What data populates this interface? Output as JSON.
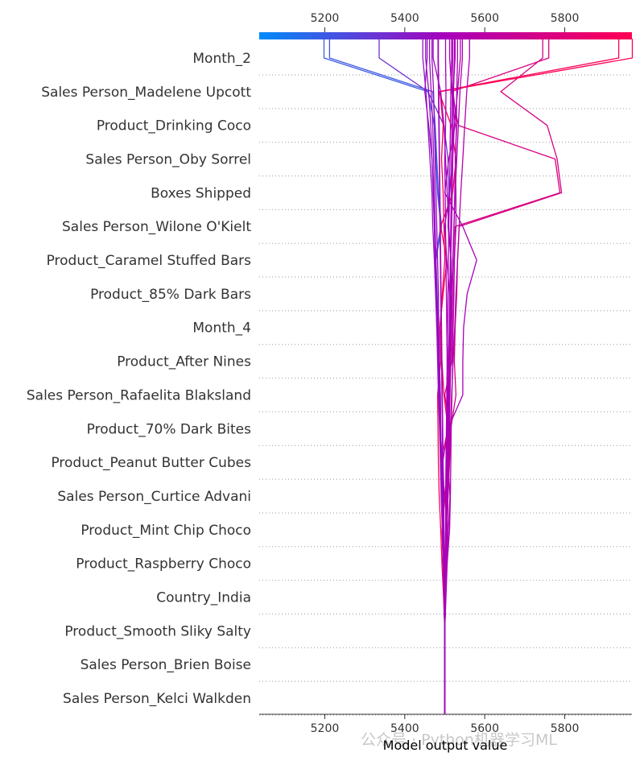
{
  "chart_data": {
    "type": "line",
    "title": "",
    "xlabel": "Model output value",
    "ylabel": "",
    "xlim": [
      5036,
      5968
    ],
    "x_ticks": [
      5200,
      5400,
      5600,
      5800
    ],
    "base_value": 5500,
    "colorbar": {
      "from": "#008bfb",
      "to": "#ff0052"
    },
    "grid": "dotted-horizontal",
    "features": [
      "Month_2",
      "Sales Person_Madelene Upcott",
      "Product_Drinking Coco",
      "Sales Person_Oby Sorrel",
      "Boxes Shipped",
      "Sales Person_Wilone O'Kielt",
      "Product_Caramel Stuffed Bars",
      "Product_85% Dark Bars",
      "Month_4",
      "Product_After Nines",
      "Sales Person_Rafaelita Blaksland",
      "Product_70% Dark Bites",
      "Product_Peanut Butter Cubes",
      "Sales Person_Curtice Advani",
      "Product_Mint Chip Choco",
      "Product_Raspberry Choco",
      "Country_India",
      "Product_Smooth Sliky Salty",
      "Sales Person_Brien Boise",
      "Sales Person_Kelci Walkden"
    ],
    "series": [
      {
        "values": [
          5500,
          5500,
          5500,
          5499,
          5499,
          5498,
          5497,
          5493,
          5488,
          5485,
          5484,
          5482,
          5479,
          5476,
          5490,
          5482,
          5478,
          5474,
          5458,
          5198
        ]
      },
      {
        "values": [
          5500,
          5500,
          5500,
          5499,
          5498,
          5497,
          5496,
          5494,
          5489,
          5487,
          5486,
          5484,
          5481,
          5478,
          5492,
          5484,
          5480,
          5476,
          5470,
          5212
        ]
      },
      {
        "values": [
          5500,
          5500,
          5500,
          5501,
          5502,
          5504,
          5505,
          5506,
          5507,
          5512,
          5513,
          5514,
          5515,
          5516,
          5508,
          5510,
          5508,
          5498,
          5458,
          5336
        ]
      },
      {
        "values": [
          5500,
          5500,
          5500,
          5502,
          5504,
          5506,
          5508,
          5512,
          5515,
          5528,
          5524,
          5526,
          5530,
          5532,
          5536,
          5792,
          5781,
          5756,
          5640,
          5745
        ]
      },
      {
        "values": [
          5500,
          5500,
          5500,
          5501,
          5503,
          5505,
          5508,
          5510,
          5513,
          5500,
          5518,
          5520,
          5522,
          5524,
          5526,
          5788,
          5776,
          5534,
          5517,
          5760
        ]
      },
      {
        "values": [
          5500,
          5500,
          5500,
          5498,
          5496,
          5493,
          5501,
          5490,
          5508,
          5498,
          5493,
          5488,
          5496,
          5505,
          5490,
          5520,
          5528,
          5516,
          5485,
          5935
        ]
      },
      {
        "values": [
          5500,
          5500,
          5500,
          5497,
          5493,
          5490,
          5486,
          5484,
          5483,
          5482,
          5490,
          5488,
          5494,
          5500,
          5498,
          5496,
          5492,
          5496,
          5488,
          5969
        ]
      },
      {
        "values": [
          5500,
          5500,
          5500,
          5502,
          5505,
          5509,
          5513,
          5508,
          5512,
          5510,
          5508,
          5512,
          5512,
          5505,
          5500,
          5512,
          5520,
          5524,
          5532,
          5539
        ]
      },
      {
        "values": [
          5500,
          5500,
          5500,
          5499,
          5497,
          5495,
          5499,
          5495,
          5508,
          5545,
          5545,
          5547,
          5556,
          5580,
          5545,
          5500,
          5510,
          5526,
          5518,
          5512
        ]
      },
      {
        "values": [
          5500,
          5500,
          5500,
          5503,
          5506,
          5512,
          5514,
          5515,
          5516,
          5518,
          5520,
          5521,
          5523,
          5524,
          5528,
          5528,
          5526,
          5530,
          5521,
          5526
        ]
      },
      {
        "values": [
          5500,
          5500,
          5500,
          5501,
          5502,
          5503,
          5504,
          5506,
          5507,
          5509,
          5510,
          5511,
          5512,
          5514,
          5515,
          5516,
          5517,
          5518,
          5519,
          5520
        ]
      },
      {
        "values": [
          5500,
          5500,
          5500,
          5498,
          5496,
          5494,
          5491,
          5489,
          5487,
          5484,
          5482,
          5480,
          5477,
          5474,
          5470,
          5468,
          5463,
          5458,
          5453,
          5445
        ]
      },
      {
        "values": [
          5500,
          5500,
          5500,
          5498,
          5496,
          5494,
          5495,
          5492,
          5490,
          5489,
          5486,
          5483,
          5480,
          5476,
          5474,
          5472,
          5468,
          5460,
          5450,
          5456
        ]
      },
      {
        "values": [
          5500,
          5500,
          5500,
          5502,
          5504,
          5506,
          5507,
          5508,
          5509,
          5510,
          5511,
          5513,
          5514,
          5515,
          5517,
          5519,
          5520,
          5521,
          5522,
          5524
        ]
      },
      {
        "values": [
          5500,
          5500,
          5500,
          5499,
          5498,
          5497,
          5494,
          5492,
          5489,
          5487,
          5484,
          5480,
          5478,
          5476,
          5474,
          5471,
          5468,
          5465,
          5460,
          5452
        ]
      },
      {
        "values": [
          5500,
          5500,
          5500,
          5501,
          5503,
          5505,
          5507,
          5508,
          5510,
          5512,
          5515,
          5513,
          5518,
          5515,
          5510,
          5506,
          5502,
          5498,
          5490,
          5471
        ]
      },
      {
        "values": [
          5500,
          5500,
          5500,
          5501,
          5502,
          5503,
          5504,
          5505,
          5506,
          5507,
          5506,
          5505,
          5504,
          5503,
          5502,
          5501,
          5500,
          5502,
          5503,
          5502
        ]
      },
      {
        "values": [
          5500,
          5500,
          5500,
          5499,
          5498,
          5497,
          5496,
          5495,
          5494,
          5493,
          5492,
          5491,
          5490,
          5489,
          5488,
          5487,
          5486,
          5485,
          5484,
          5483
        ]
      },
      {
        "values": [
          5500,
          5500,
          5500,
          5501,
          5502,
          5503,
          5504,
          5506,
          5508,
          5510,
          5512,
          5515,
          5518,
          5520,
          5523,
          5526,
          5530,
          5534,
          5538,
          5544
        ]
      },
      {
        "values": [
          5500,
          5500,
          5500,
          5502,
          5504,
          5506,
          5508,
          5511,
          5514,
          5517,
          5521,
          5525,
          5528,
          5532,
          5536,
          5540,
          5545,
          5550,
          5555,
          5562
        ]
      },
      {
        "values": [
          5500,
          5500,
          5500,
          5498,
          5496,
          5494,
          5492,
          5490,
          5488,
          5486,
          5484,
          5482,
          5480,
          5478,
          5476,
          5474,
          5472,
          5470,
          5466,
          5462
        ]
      },
      {
        "values": [
          5500,
          5500,
          5500,
          5501,
          5501,
          5502,
          5502,
          5503,
          5504,
          5505,
          5506,
          5507,
          5508,
          5509,
          5510,
          5512,
          5513,
          5514,
          5515,
          5517
        ]
      },
      {
        "values": [
          5500,
          5500,
          5500,
          5499,
          5499,
          5498,
          5497,
          5496,
          5495,
          5494,
          5493,
          5492,
          5491,
          5490,
          5489,
          5488,
          5487,
          5486,
          5485,
          5484
        ]
      },
      {
        "values": [
          5500,
          5500,
          5500,
          5502,
          5503,
          5505,
          5507,
          5509,
          5511,
          5513,
          5515,
          5517,
          5519,
          5521,
          5523,
          5525,
          5527,
          5529,
          5530,
          5532
        ]
      },
      {
        "values": [
          5500,
          5500,
          5500,
          5498,
          5497,
          5495,
          5494,
          5492,
          5490,
          5489,
          5487,
          5485,
          5484,
          5482,
          5480,
          5478,
          5476,
          5474,
          5472,
          5468
        ]
      }
    ]
  },
  "watermark": "公众号 · Python机器学习ML"
}
